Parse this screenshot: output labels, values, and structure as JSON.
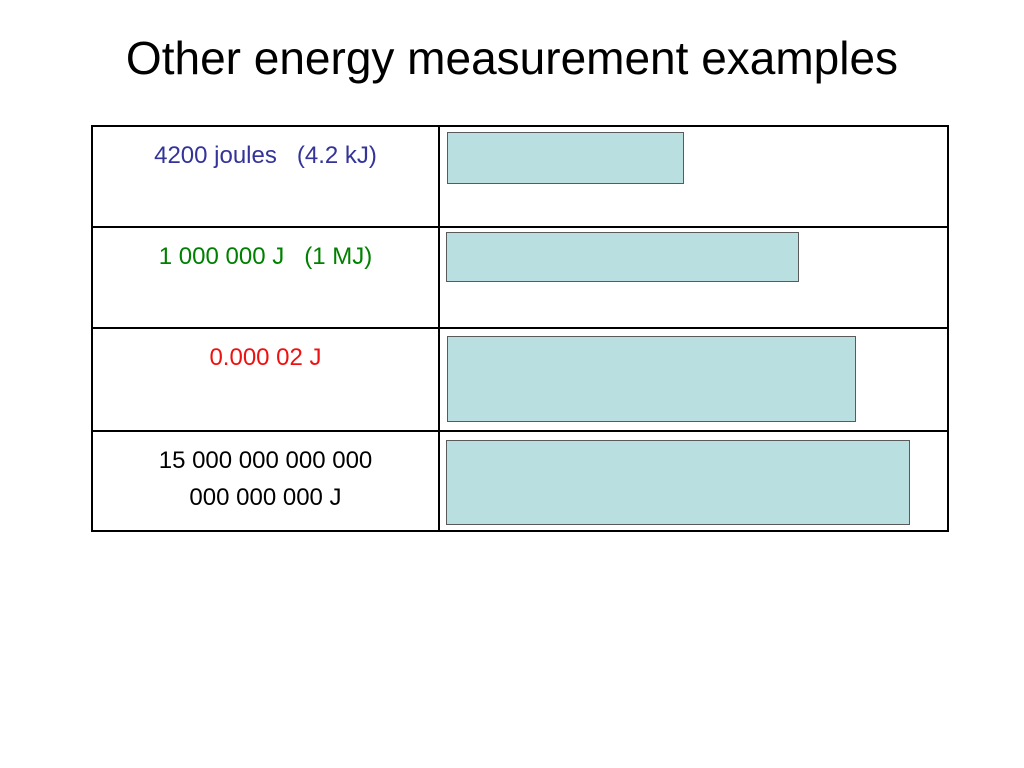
{
  "title": "Other energy measurement examples",
  "rows": [
    {
      "value": "4200 joules   (4.2 kJ)",
      "color": "#33339a"
    },
    {
      "value": "1 000 000 J   (1 MJ)",
      "color": "#008000"
    },
    {
      "value": "0.000 02 J",
      "color": "#ee1111"
    },
    {
      "value_line1": "15 000 000 000 000",
      "value_line2": "000 000 000 J",
      "color": "#000000"
    }
  ],
  "answer_box_color": "#b9dfe0"
}
